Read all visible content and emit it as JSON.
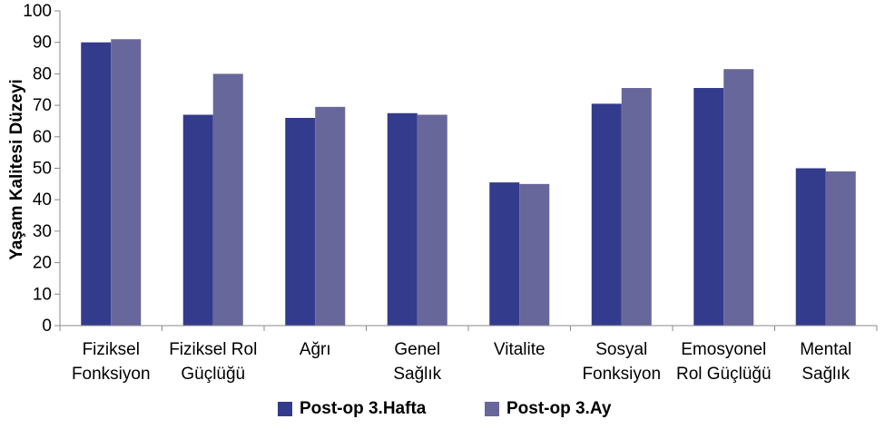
{
  "chart_data": {
    "type": "bar",
    "categories": [
      [
        "Fiziksel",
        "Fonksiyon"
      ],
      [
        "Fiziksel Rol",
        "Güçlüğü"
      ],
      [
        "Ağrı"
      ],
      [
        "Genel",
        "Sağlık"
      ],
      [
        "Vitalite"
      ],
      [
        "Sosyal",
        "Fonksiyon"
      ],
      [
        "Emosyonel",
        "Rol Güçlüğü"
      ],
      [
        "Mental",
        "Sağlık"
      ]
    ],
    "series": [
      {
        "name": "Post-op 3.Hafta",
        "color": "#333b8d",
        "values": [
          90,
          67,
          66,
          67.5,
          45.5,
          70.5,
          75.5,
          50
        ]
      },
      {
        "name": "Post-op 3.Ay",
        "color": "#67679b",
        "values": [
          91,
          80,
          69.5,
          67,
          45,
          75.5,
          81.5,
          49
        ]
      }
    ],
    "ylabel": "Yaşam Kalitesi Düzeyi",
    "ylim": [
      0,
      100
    ],
    "yticks": [
      0,
      10,
      20,
      30,
      40,
      50,
      60,
      70,
      80,
      90,
      100
    ],
    "grid": false,
    "legend": "bottom"
  }
}
